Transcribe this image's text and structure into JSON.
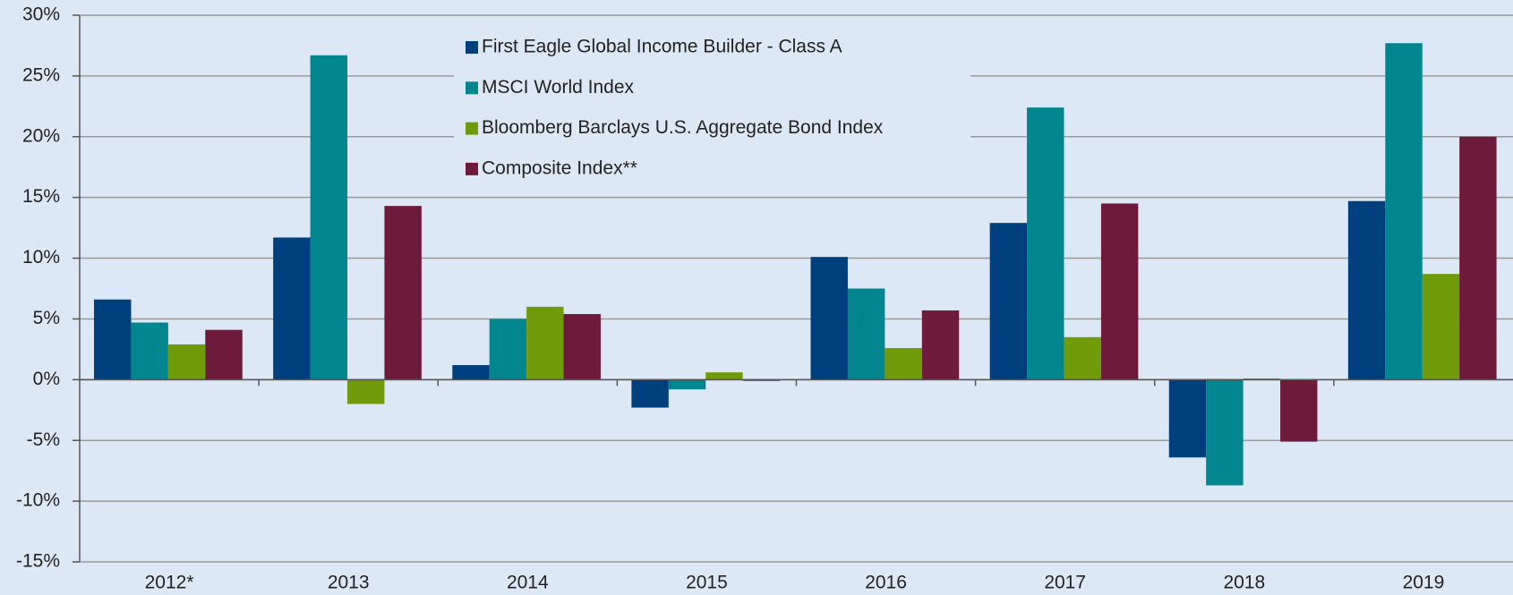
{
  "chart_data": {
    "type": "bar",
    "categories": [
      "2012*",
      "2013",
      "2014",
      "2015",
      "2016",
      "2017",
      "2018",
      "2019"
    ],
    "series": [
      {
        "name": "First Eagle Global Income Builder - Class A",
        "color": "#003f7d",
        "values": [
          6.6,
          11.7,
          1.2,
          -2.3,
          10.1,
          12.9,
          -6.4,
          14.7
        ]
      },
      {
        "name": "MSCI World Index",
        "color": "#00868f",
        "values": [
          4.7,
          26.7,
          5.0,
          -0.8,
          7.5,
          22.4,
          -8.7,
          27.7
        ]
      },
      {
        "name": "Bloomberg Barclays U.S. Aggregate Bond Index",
        "color": "#6f9a0a",
        "values": [
          2.9,
          -2.0,
          6.0,
          0.6,
          2.6,
          3.5,
          0.1,
          8.7
        ]
      },
      {
        "name": "Composite Index**",
        "color": "#6e1a3a",
        "values": [
          4.1,
          14.3,
          5.4,
          -0.1,
          5.7,
          14.5,
          -5.1,
          20.0
        ]
      }
    ],
    "ylim": [
      -15,
      30
    ],
    "yticks": [
      {
        "value": -15,
        "label": "-15%"
      },
      {
        "value": -10,
        "label": "-10%"
      },
      {
        "value": -5,
        "label": "-5%"
      },
      {
        "value": 0,
        "label": "0%"
      },
      {
        "value": 5,
        "label": "5%"
      },
      {
        "value": 10,
        "label": "10%"
      },
      {
        "value": 15,
        "label": "15%"
      },
      {
        "value": 20,
        "label": "20%"
      },
      {
        "value": 25,
        "label": "25%"
      },
      {
        "value": 30,
        "label": "30%"
      }
    ],
    "grid": true
  }
}
